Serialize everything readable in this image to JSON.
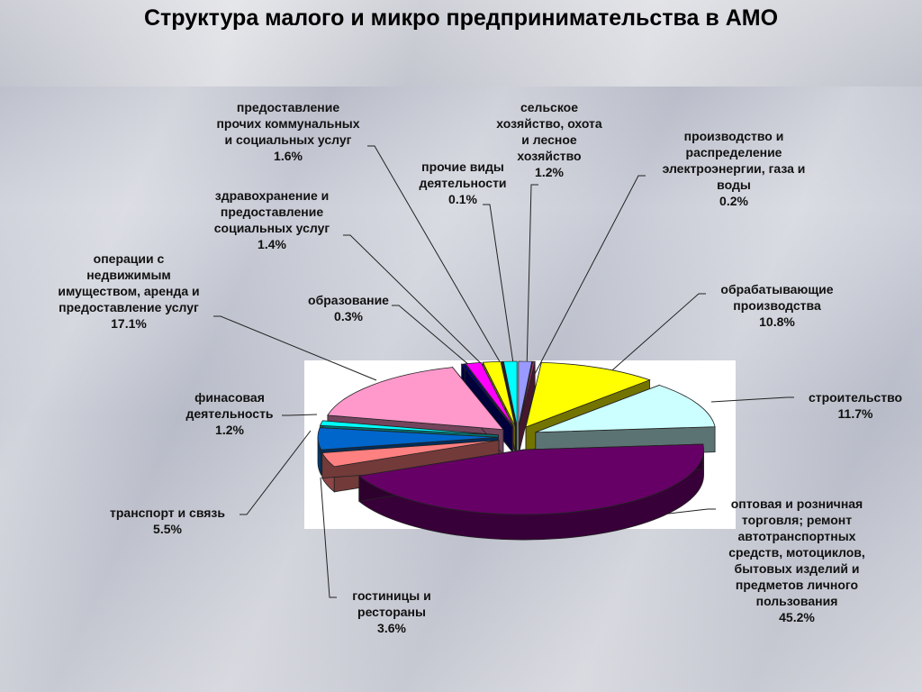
{
  "title": "Структура малого и микро предпринимательства в АМО",
  "chart_data": {
    "type": "pie",
    "title": "Структура малого и микро предпринимательства в АМО",
    "unit": "%",
    "slices": [
      {
        "label": "сельское хозяйство, охота и лесное хозяйство",
        "value": 1.2,
        "value_label": "1.2%",
        "color": "#9999ff"
      },
      {
        "label": "производство и распределение электроэнергии, газа и воды",
        "value": 0.2,
        "value_label": "0.2%",
        "color": "#993366"
      },
      {
        "label": "обрабатывающие производства",
        "value": 10.8,
        "value_label": "10.8%",
        "color": "#ffff00"
      },
      {
        "label": "строительство",
        "value": 11.7,
        "value_label": "11.7%",
        "color": "#ccffff"
      },
      {
        "label": "оптовая и розничная торговля; ремонт автотранспортных средств, мотоциклов, бытовых изделий и предметов личного пользования",
        "value": 45.2,
        "value_label": "45.2%",
        "color": "#660066"
      },
      {
        "label": "гостиницы и рестораны",
        "value": 3.6,
        "value_label": "3.6%",
        "color": "#ff8080"
      },
      {
        "label": "транспорт и связь",
        "value": 5.5,
        "value_label": "5.5%",
        "color": "#0066cc"
      },
      {
        "label": "финасовая деятельность",
        "value": 1.2,
        "value_label": "1.2%",
        "color": "#00ffff"
      },
      {
        "label": "операции с недвижимым имуществом, аренда и предоставление услуг",
        "value": 17.1,
        "value_label": "17.1%",
        "color": "#ff99cc"
      },
      {
        "label": "образование",
        "value": 0.3,
        "value_label": "0.3%",
        "color": "#000080"
      },
      {
        "label": "здравохранение и предоставление социальных услуг",
        "value": 1.4,
        "value_label": "1.4%",
        "color": "#ff00ff"
      },
      {
        "label": "предоставление прочих коммунальных и социальных услуг",
        "value": 1.6,
        "value_label": "1.6%",
        "color": "#ffff00"
      },
      {
        "label": "прочие виды деятельности",
        "value": 0.1,
        "value_label": "0.1%",
        "color": "#800000"
      },
      {
        "label": "сельское хозяйство, охота и лесное хозяйство (прочее)",
        "value": 1.2,
        "value_label": "",
        "color": "#00ffff"
      }
    ]
  },
  "labels": {
    "agri": {
      "lines": [
        "сельское",
        "хозяйство, охота",
        "и лесное",
        "хозяйство"
      ],
      "pct": "1.2%"
    },
    "energy": {
      "lines": [
        "производство и",
        "распределение",
        "электроэнергии, газа и",
        "воды"
      ],
      "pct": "0.2%"
    },
    "manufacturing": {
      "lines": [
        "обрабатывающие",
        "производства"
      ],
      "pct": "10.8%"
    },
    "construction": {
      "lines": [
        "строительство"
      ],
      "pct": "11.7%"
    },
    "trade": {
      "lines": [
        "оптовая и розничная",
        "торговля; ремонт",
        "автотранспортных",
        "средств, мотоциклов,",
        "бытовых изделий и",
        "предметов личного",
        "пользования"
      ],
      "pct": "45.2%"
    },
    "hotels": {
      "lines": [
        "гостиницы и",
        "рестораны"
      ],
      "pct": "3.6%"
    },
    "transport": {
      "lines": [
        "транспорт и связь"
      ],
      "pct": "5.5%"
    },
    "finance": {
      "lines": [
        "финасовая",
        "деятельность"
      ],
      "pct": "1.2%"
    },
    "realestate": {
      "lines": [
        "операции с",
        "недвижимым",
        "имуществом, аренда и",
        "предоставление услуг"
      ],
      "pct": "17.1%"
    },
    "education": {
      "lines": [
        "образование"
      ],
      "pct": "0.3%"
    },
    "health": {
      "lines": [
        "здравохранение и",
        "предоставление",
        "социальных услуг"
      ],
      "pct": "1.4%"
    },
    "communal": {
      "lines": [
        "предоставление",
        "прочих коммунальных",
        "и социальных услуг"
      ],
      "pct": "1.6%"
    },
    "other": {
      "lines": [
        "прочие виды",
        "деятельности"
      ],
      "pct": "0.1%"
    }
  }
}
